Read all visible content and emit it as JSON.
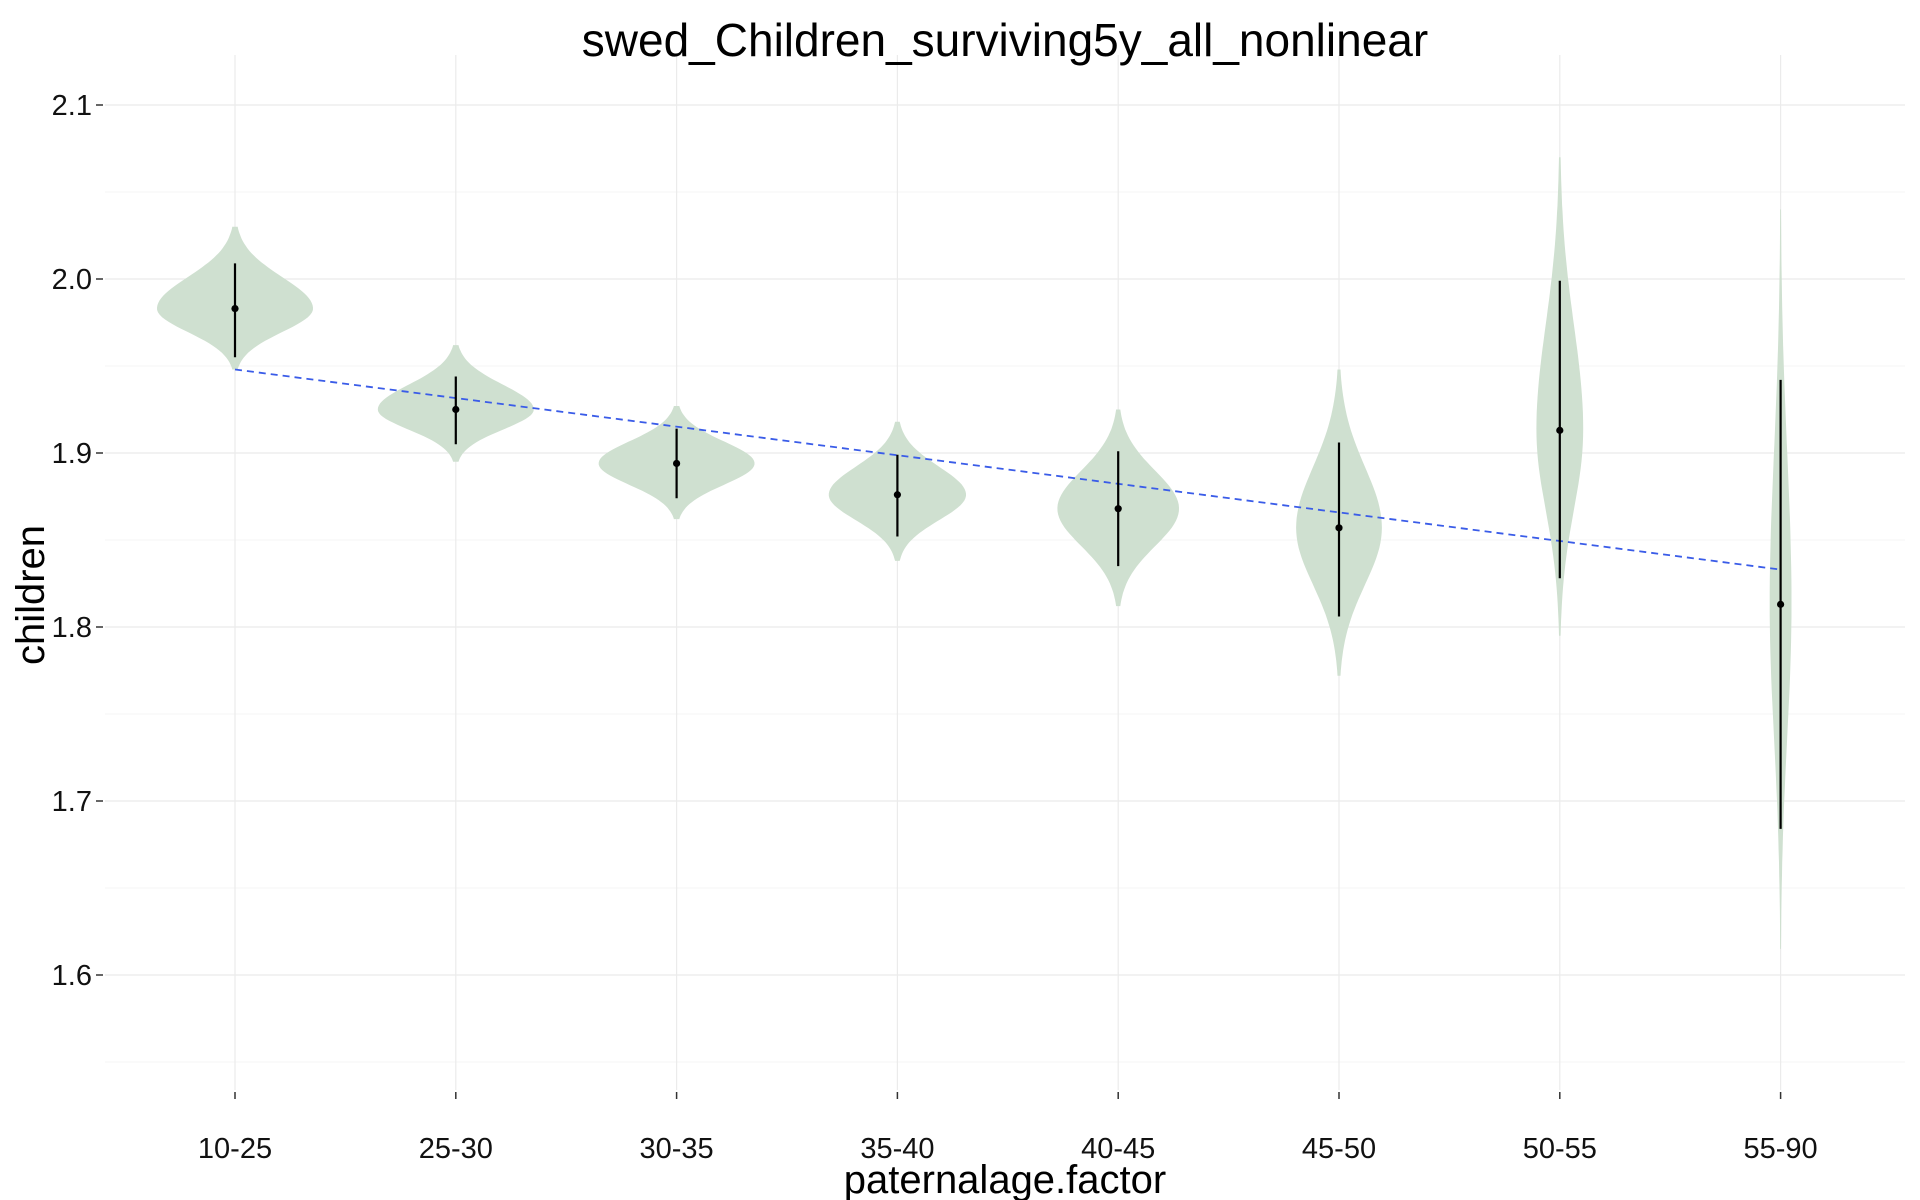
{
  "chart_data": {
    "type": "violin",
    "title": "swed_Children_surviving5y_all_nonlinear",
    "xlabel": "paternalage.factor",
    "ylabel": "children",
    "categories": [
      "10-25",
      "25-30",
      "30-35",
      "35-40",
      "40-45",
      "45-50",
      "50-55",
      "55-90"
    ],
    "yticks": [
      1.6,
      1.7,
      1.8,
      1.9,
      2.0,
      2.1
    ],
    "ytick_labels": [
      "1.6",
      "1.7",
      "1.8",
      "1.9",
      "2.0",
      "2.1"
    ],
    "ylim": [
      1.52,
      2.15
    ],
    "grid": true,
    "legend": "none",
    "series": [
      {
        "points": [
          1.983,
          1.925,
          1.894,
          1.876,
          1.868,
          1.857,
          1.913,
          1.813
        ],
        "ci_low": [
          1.955,
          1.905,
          1.874,
          1.852,
          1.835,
          1.806,
          1.828,
          1.684
        ],
        "ci_high": [
          2.009,
          1.944,
          1.914,
          1.899,
          1.901,
          1.906,
          1.999,
          1.942
        ],
        "density_min": [
          1.948,
          1.895,
          1.862,
          1.838,
          1.812,
          1.772,
          1.795,
          1.615
        ],
        "density_max": [
          2.03,
          1.962,
          1.927,
          1.918,
          1.925,
          1.948,
          2.07,
          2.04
        ],
        "density_mode": [
          1.983,
          1.925,
          1.894,
          1.876,
          1.868,
          1.857,
          1.913,
          1.813
        ],
        "relative_width": [
          1.0,
          1.0,
          1.0,
          0.88,
          0.78,
          0.55,
          0.3,
          0.14
        ]
      }
    ],
    "trend_line": {
      "from": {
        "category": "10-25",
        "y": 1.948
      },
      "to": {
        "category": "55-90",
        "y": 1.833
      }
    },
    "colors": {
      "violin_fill": "#cfe0d0",
      "trend_line": "#3a5ce8",
      "point": "#000000"
    }
  }
}
